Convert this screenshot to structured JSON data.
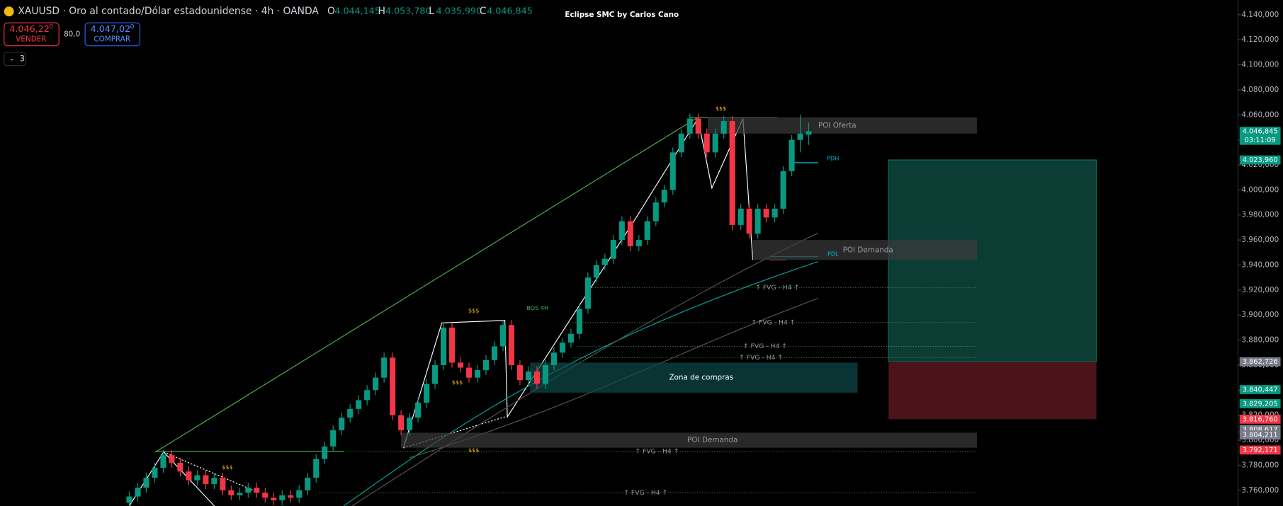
{
  "header": {
    "symbol": "XAUUSD · Oro al contado/Dólar estadounidense · 4h · OANDA",
    "ohlc": [
      {
        "key": "O",
        "text": "4.044,145"
      },
      {
        "key": "H",
        "text": "4.053,780"
      },
      {
        "key": "L",
        "text": "4.035,990"
      },
      {
        "key": "C",
        "text": "4.046,845"
      }
    ],
    "sell": {
      "price": "4.046,22",
      "sup": "0",
      "label": "VENDER"
    },
    "spread": "80,0",
    "buy": {
      "price": "4.047,02",
      "sup": "0",
      "label": "COMPRAR"
    },
    "indicators": "3",
    "script": "Eclipse SMC by Carlos Cano"
  },
  "chart_data": {
    "type": "candlestick",
    "up_color": "#089981",
    "down_color": "#f23645",
    "open": [
      3750,
      3755,
      3762,
      3770,
      3778,
      3788,
      3782,
      3775,
      3768,
      3772,
      3765,
      3770,
      3760,
      3756,
      3758,
      3762,
      3758,
      3754,
      3752,
      3756,
      3754,
      3760,
      3770,
      3785,
      3795,
      3808,
      3818,
      3825,
      3832,
      3840,
      3850,
      3866,
      3820,
      3808,
      3818,
      3830,
      3845,
      3860,
      3890,
      3862,
      3858,
      3850,
      3856,
      3864,
      3875,
      3892,
      3860,
      3848,
      3855,
      3845,
      3860,
      3870,
      3878,
      3885,
      3905,
      3930,
      3940,
      3945,
      3960,
      3975,
      3955,
      3960,
      3975,
      3990,
      4000,
      4030,
      4045,
      4057,
      4045,
      4030,
      4045,
      4055,
      3972,
      3985,
      3965,
      3985,
      3978,
      3985,
      4015,
      4040,
      4044.145
    ],
    "high": [
      3759,
      3766,
      3774,
      3782,
      3792,
      3792,
      3786,
      3779,
      3776,
      3776,
      3774,
      3774,
      3764,
      3762,
      3766,
      3766,
      3762,
      3758,
      3760,
      3760,
      3764,
      3774,
      3789,
      3799,
      3812,
      3822,
      3829,
      3836,
      3844,
      3854,
      3870,
      3870,
      3824,
      3822,
      3834,
      3849,
      3864,
      3894,
      3894,
      3866,
      3862,
      3860,
      3868,
      3879,
      3896,
      3896,
      3864,
      3859,
      3859,
      3864,
      3874,
      3882,
      3889,
      3909,
      3934,
      3944,
      3949,
      3964,
      3979,
      3979,
      3964,
      3979,
      3994,
      4004,
      4034,
      4049,
      4061,
      4061,
      4049,
      4049,
      4059,
      4059,
      3989,
      3989,
      3989,
      3989,
      3989,
      4019,
      4044,
      4060,
      4053.78
    ],
    "low": [
      3746,
      3751,
      3758,
      3766,
      3774,
      3778,
      3771,
      3764,
      3764,
      3761,
      3761,
      3756,
      3752,
      3752,
      3754,
      3754,
      3750,
      3748,
      3748,
      3750,
      3750,
      3756,
      3766,
      3781,
      3791,
      3804,
      3814,
      3821,
      3828,
      3836,
      3846,
      3816,
      3804,
      3804,
      3814,
      3826,
      3841,
      3856,
      3858,
      3854,
      3846,
      3846,
      3852,
      3860,
      3871,
      3856,
      3844,
      3844,
      3841,
      3841,
      3856,
      3866,
      3874,
      3881,
      3901,
      3926,
      3936,
      3941,
      3956,
      3951,
      3951,
      3956,
      3971,
      3986,
      3996,
      4026,
      4041,
      4041,
      4026,
      4026,
      4041,
      3968,
      3968,
      3961,
      3961,
      3974,
      3974,
      3981,
      4011,
      4030,
      4035.99
    ],
    "close": [
      3755,
      3762,
      3770,
      3778,
      3788,
      3782,
      3775,
      3768,
      3772,
      3765,
      3770,
      3760,
      3756,
      3758,
      3762,
      3758,
      3754,
      3752,
      3756,
      3754,
      3760,
      3770,
      3785,
      3795,
      3808,
      3818,
      3825,
      3832,
      3840,
      3850,
      3866,
      3820,
      3808,
      3818,
      3830,
      3845,
      3860,
      3890,
      3862,
      3858,
      3850,
      3856,
      3864,
      3875,
      3892,
      3860,
      3848,
      3855,
      3845,
      3860,
      3870,
      3878,
      3885,
      3905,
      3930,
      3940,
      3945,
      3960,
      3975,
      3955,
      3960,
      3975,
      3990,
      4000,
      4030,
      4045,
      4057,
      4045,
      4030,
      4045,
      4055,
      3972,
      3985,
      3965,
      3985,
      3978,
      3985,
      4015,
      4040,
      4045,
      4046.845
    ],
    "ylim": [
      3750,
      4150
    ],
    "yticks": [
      {
        "value": 4140,
        "label": "4.140,000"
      },
      {
        "value": 4120,
        "label": "4.120,000"
      },
      {
        "value": 4100,
        "label": "4.100,000"
      },
      {
        "value": 4080,
        "label": "4.080,000"
      },
      {
        "value": 4060,
        "label": "4.060,000"
      },
      {
        "value": 4040,
        "label": "4.040,000"
      },
      {
        "value": 4020,
        "label": "4.020,000"
      },
      {
        "value": 4000,
        "label": "4.000,000"
      },
      {
        "value": 3980,
        "label": "3.980,000"
      },
      {
        "value": 3960,
        "label": "3.960,000"
      },
      {
        "value": 3940,
        "label": "3.940,000"
      },
      {
        "value": 3920,
        "label": "3.920,000"
      },
      {
        "value": 3900,
        "label": "3.900,000"
      },
      {
        "value": 3880,
        "label": "3.880,000"
      },
      {
        "value": 3860,
        "label": "3.860,000"
      },
      {
        "value": 3840,
        "label": "3.840,000"
      },
      {
        "value": 3820,
        "label": "3.820,000"
      },
      {
        "value": 3800,
        "label": "3.800,000"
      },
      {
        "value": 3780,
        "label": "3.780,000"
      },
      {
        "value": 3760,
        "label": "3.760,000"
      }
    ],
    "price_labels": [
      {
        "value": 4046.845,
        "label": "4.046,845",
        "sub": "03:11:09",
        "color": "#089981"
      },
      {
        "value": 4023.96,
        "label": "4.023,960",
        "color": "#089981"
      },
      {
        "value": 3862.726,
        "label": "3.862,726",
        "color": "#787b86"
      },
      {
        "value": 3840.447,
        "label": "3.840,447",
        "color": "#089981"
      },
      {
        "value": 3829.205,
        "label": "3.829,205",
        "color": "#089981"
      },
      {
        "value": 3816.76,
        "label": "3.816,760",
        "color": "#f23645"
      },
      {
        "value": 3808.617,
        "label": "3.808,617",
        "color": "#787b86"
      },
      {
        "value": 3804.211,
        "label": "3.804,211",
        "color": "#787b86"
      },
      {
        "value": 3792.171,
        "label": "3.792,171",
        "color": "#f23645"
      }
    ],
    "zones": [
      {
        "label": "POI Oferta",
        "top": 4058,
        "bottom": 4045,
        "color": "#3a3a3a"
      },
      {
        "label": "POI Demanda",
        "top": 3960,
        "bottom": 3944,
        "color": "#3a3a3a"
      },
      {
        "label": "Zona de compras",
        "top": 3862,
        "bottom": 3838,
        "color": "#0e4a48"
      },
      {
        "label": "POI Demanda",
        "top": 3806,
        "bottom": 3794,
        "color": "#3a3a3a"
      }
    ],
    "fvg": [
      {
        "label": "↑ FVG - H4 ↑",
        "level": 3922
      },
      {
        "label": "↑ FVG - H4 ↑",
        "level": 3894
      },
      {
        "label": "↑ FVG - H4 ↑",
        "level": 3875
      },
      {
        "label": "↑ FVG - H4 ↑",
        "level": 3866
      },
      {
        "label": "↑ FVG - H4 ↑",
        "level": 3791
      },
      {
        "label": "↑ FVG - H4 ↑",
        "level": 3758
      }
    ],
    "position": {
      "target": 4023.96,
      "entry": 3862.726,
      "stop": 3816.76,
      "profit_color": "#0b3d35",
      "loss_color": "#4a1419"
    },
    "annotations": [
      "$$$",
      "$$$",
      "$$$",
      "$$$",
      "$$$",
      "BOS 4H",
      "PDH",
      "PDL"
    ]
  }
}
